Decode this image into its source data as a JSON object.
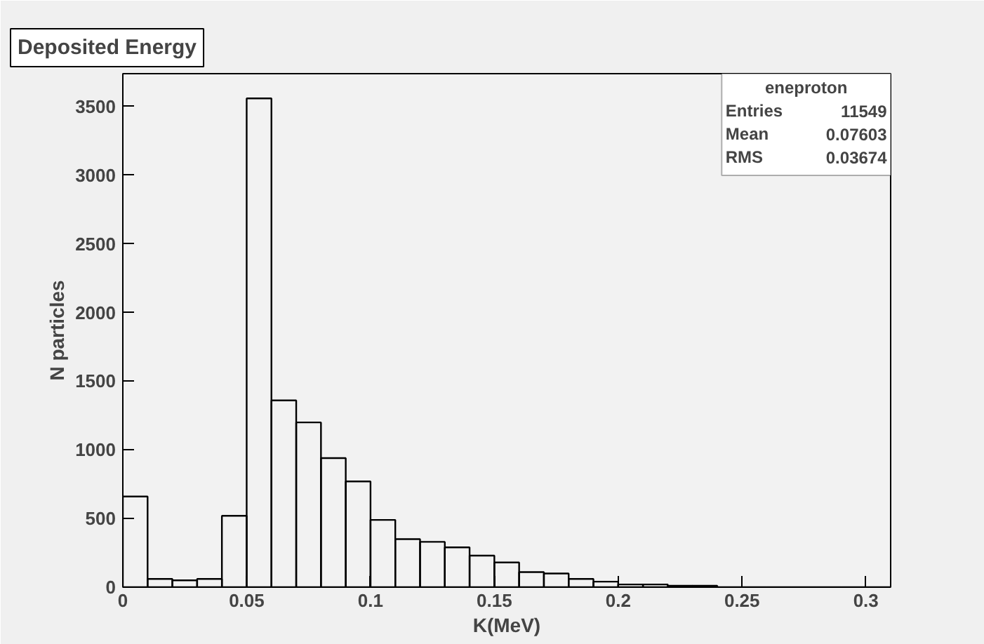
{
  "chart_data": {
    "type": "histogram",
    "title": "Deposited Energy",
    "xlabel": "K(MeV)",
    "ylabel": "N particles",
    "bins": [
      0,
      0.01,
      0.02,
      0.03,
      0.04,
      0.05,
      0.06,
      0.07,
      0.08,
      0.09,
      0.1,
      0.11,
      0.12,
      0.13,
      0.14,
      0.15,
      0.16,
      0.17,
      0.18,
      0.19,
      0.2,
      0.21,
      0.22,
      0.23,
      0.24,
      0.25,
      0.26,
      0.27,
      0.28,
      0.29,
      0.3,
      0.31
    ],
    "values": [
      660,
      60,
      50,
      60,
      520,
      3560,
      1360,
      1200,
      940,
      770,
      490,
      350,
      330,
      290,
      230,
      180,
      110,
      100,
      60,
      40,
      20,
      20,
      10,
      10,
      0,
      0,
      0,
      0,
      0,
      0,
      0
    ],
    "color": "#000000",
    "xlim": [
      0,
      0.31
    ],
    "ylim": [
      0,
      3740
    ],
    "xticks": [
      0,
      0.05,
      0.1,
      0.15,
      0.2,
      0.25,
      0.3
    ],
    "yticks": [
      0,
      500,
      1000,
      1500,
      2000,
      2500,
      3000,
      3500
    ],
    "grid": false,
    "annotations": [
      "eneproton",
      "Entries 11549",
      "Mean 0.07603",
      "RMS 0.03674"
    ]
  }
}
